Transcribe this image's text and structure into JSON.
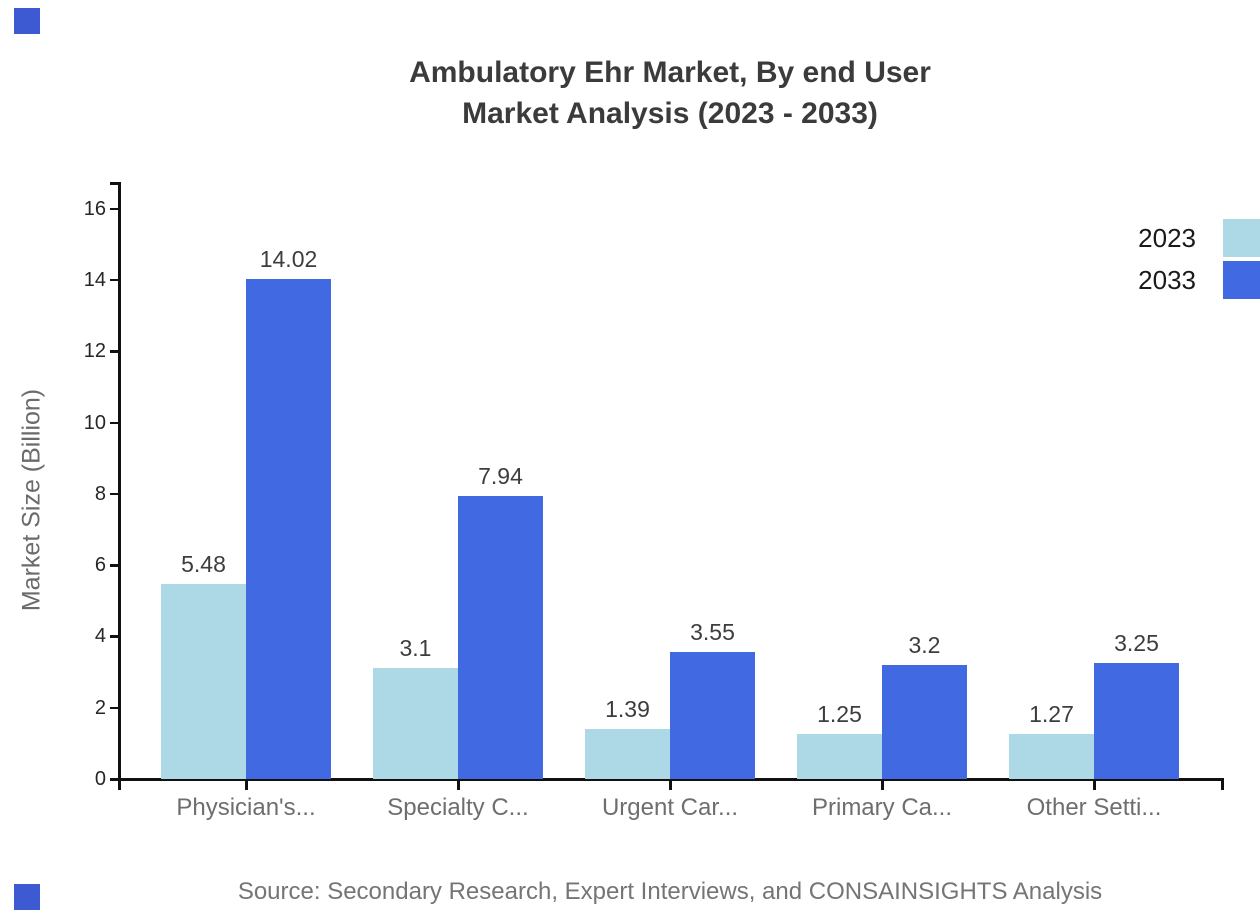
{
  "title": {
    "line1": "Ambulatory Ehr Market, By end User",
    "line2": "Market Analysis (2023 - 2033)"
  },
  "y_axis_title": "Market Size (Billion)",
  "source_note": "Source: Secondary Research, Expert Interviews, and CONSAINSIGHTS Analysis",
  "colors": {
    "series_2023": "#ADD8E6",
    "series_2033": "#4169E1",
    "axis": "#111111",
    "title_text": "#3B3B3B",
    "category_label": "#6E6E6E",
    "value_label": "#3D3D3D",
    "tick_label": "#262626",
    "legend_text": "#1A1A1A",
    "source_text": "#757575",
    "y_axis_title_text": "#6B6B6B",
    "corner_mark": "#3D5AD3"
  },
  "legend": {
    "items": [
      {
        "label": "2023",
        "color": "#ADD8E6"
      },
      {
        "label": "2033",
        "color": "#4169E1"
      }
    ]
  },
  "chart_data": {
    "type": "bar",
    "title": "Ambulatory Ehr Market, By end User — Market Analysis (2023 - 2033)",
    "categories": [
      "Physician's...",
      "Specialty C...",
      "Urgent Car...",
      "Primary Ca...",
      "Other Setti..."
    ],
    "series": [
      {
        "name": "2023",
        "color": "#ADD8E6",
        "values": [
          5.48,
          3.1,
          1.39,
          1.25,
          1.27
        ],
        "labels": [
          "5.48",
          "3.1",
          "1.39",
          "1.25",
          "1.27"
        ]
      },
      {
        "name": "2033",
        "color": "#4169E1",
        "values": [
          14.02,
          7.94,
          3.55,
          3.2,
          3.25
        ],
        "labels": [
          "14.02",
          "7.94",
          "3.55",
          "3.2",
          "3.25"
        ]
      }
    ],
    "xlabel": "",
    "ylabel": "Market Size (Billion)",
    "ylim": [
      0,
      16
    ],
    "yticks": [
      0,
      2,
      4,
      6,
      8,
      10,
      12,
      14,
      16
    ],
    "grid": false,
    "legend_position": "top-right",
    "value_labels_shown": true
  }
}
